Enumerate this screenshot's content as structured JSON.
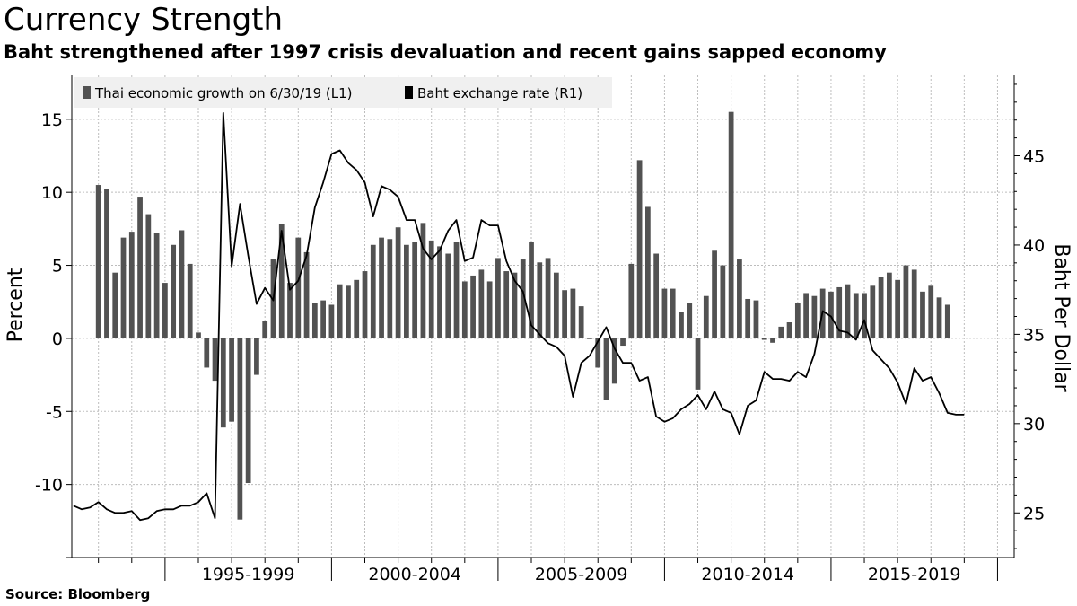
{
  "title": "Currency Strength",
  "subtitle": "Baht strengthened after 1997 crisis devaluation and recent gains sapped economy",
  "source": "Source: Bloomberg",
  "colors": {
    "bars": "#525252",
    "line": "#000000",
    "grid": "#bdbdbd",
    "legend_bg": "#f0f0f0"
  },
  "chart_data": {
    "type": "bar+line",
    "title": "Currency Strength",
    "legend": [
      {
        "label": "Thai economic growth on 6/30/19 (L1)",
        "series": "growth"
      },
      {
        "label": "Baht exchange rate (R1)",
        "series": "baht"
      }
    ],
    "ylabel_left": "Percent",
    "ylabel_right": "Baht Per Dollar",
    "ylim_left": [
      -15,
      18
    ],
    "ylim_right": [
      22.5,
      49.5
    ],
    "yticks_left": [
      15,
      10,
      5,
      0,
      -5,
      -10
    ],
    "yticks_left_labels": [
      "15",
      "10",
      "5",
      "0",
      "-5",
      "-10"
    ],
    "yticks_right": [
      45,
      40,
      35,
      30,
      25
    ],
    "xlim": [
      1992.2,
      2020.5
    ],
    "x_period_labels": [
      {
        "label": "1995-1999",
        "start": 1995,
        "end": 2000
      },
      {
        "label": "2000-2004",
        "start": 2000,
        "end": 2005
      },
      {
        "label": "2005-2009",
        "start": 2005,
        "end": 2010
      },
      {
        "label": "2010-2014",
        "start": 2010,
        "end": 2015
      },
      {
        "label": "2015-2019",
        "start": 2015,
        "end": 2020
      }
    ],
    "series": [
      {
        "name": "Thai economic growth on 6/30/19",
        "axis": "left",
        "type": "bar",
        "start": 1993.0,
        "step": 0.25,
        "values": [
          10.5,
          10.2,
          4.5,
          6.9,
          7.3,
          9.7,
          8.5,
          7.2,
          3.8,
          6.4,
          7.4,
          5.1,
          0.4,
          -2.0,
          -2.9,
          -6.1,
          -5.7,
          -12.4,
          -9.9,
          -2.5,
          1.2,
          5.4,
          7.8,
          3.8,
          6.9,
          5.9,
          2.4,
          2.6,
          2.3,
          3.7,
          3.6,
          4.0,
          4.6,
          6.4,
          6.9,
          6.8,
          7.6,
          6.4,
          6.6,
          7.9,
          6.7,
          6.3,
          5.8,
          6.6,
          3.9,
          4.3,
          4.7,
          3.9,
          5.5,
          4.6,
          4.5,
          5.4,
          6.6,
          5.2,
          5.5,
          4.5,
          3.3,
          3.4,
          2.2,
          0.0,
          -2.0,
          -4.2,
          -3.1,
          -0.5,
          5.1,
          12.2,
          9.0,
          5.8,
          3.4,
          3.4,
          1.8,
          2.4,
          -3.5,
          2.9,
          6.0,
          5.0,
          15.5,
          5.4,
          2.7,
          2.6,
          -0.1,
          -0.3,
          0.8,
          1.1,
          2.4,
          3.1,
          2.9,
          3.4,
          3.2,
          3.5,
          3.7,
          3.1,
          3.1,
          3.6,
          4.2,
          4.5,
          4.0,
          5.0,
          4.7,
          3.2,
          3.6,
          2.8,
          2.3
        ]
      },
      {
        "name": "Baht exchange rate",
        "axis": "right",
        "type": "line",
        "start": 1992.25,
        "step": 0.25,
        "values": [
          25.4,
          25.2,
          25.3,
          25.6,
          25.2,
          25.0,
          25.0,
          25.1,
          24.6,
          24.7,
          25.1,
          25.2,
          25.2,
          25.4,
          25.4,
          25.6,
          26.1,
          24.7,
          47.4,
          38.8,
          42.3,
          39.4,
          36.7,
          37.6,
          36.9,
          40.8,
          37.5,
          38.0,
          39.4,
          42.1,
          43.5,
          45.1,
          45.3,
          44.6,
          44.2,
          43.5,
          41.6,
          43.3,
          43.1,
          42.7,
          41.4,
          41.4,
          39.8,
          39.2,
          39.7,
          40.8,
          41.4,
          39.1,
          39.3,
          41.4,
          41.1,
          41.1,
          39.1,
          38.0,
          37.4,
          35.5,
          35.0,
          34.5,
          34.3,
          33.8,
          31.5,
          33.4,
          33.8,
          34.6,
          35.4,
          34.2,
          33.4,
          33.4,
          32.4,
          32.6,
          30.4,
          30.1,
          30.3,
          30.8,
          31.1,
          31.6,
          30.8,
          31.8,
          30.8,
          30.6,
          29.4,
          31.0,
          31.3,
          32.9,
          32.5,
          32.5,
          32.4,
          32.9,
          32.6,
          33.9,
          36.3,
          36.0,
          35.2,
          35.1,
          34.7,
          35.8,
          34.1,
          33.6,
          33.1,
          32.3,
          31.1,
          33.1,
          32.4,
          32.6,
          31.7,
          30.6,
          30.5,
          30.5
        ]
      }
    ]
  }
}
